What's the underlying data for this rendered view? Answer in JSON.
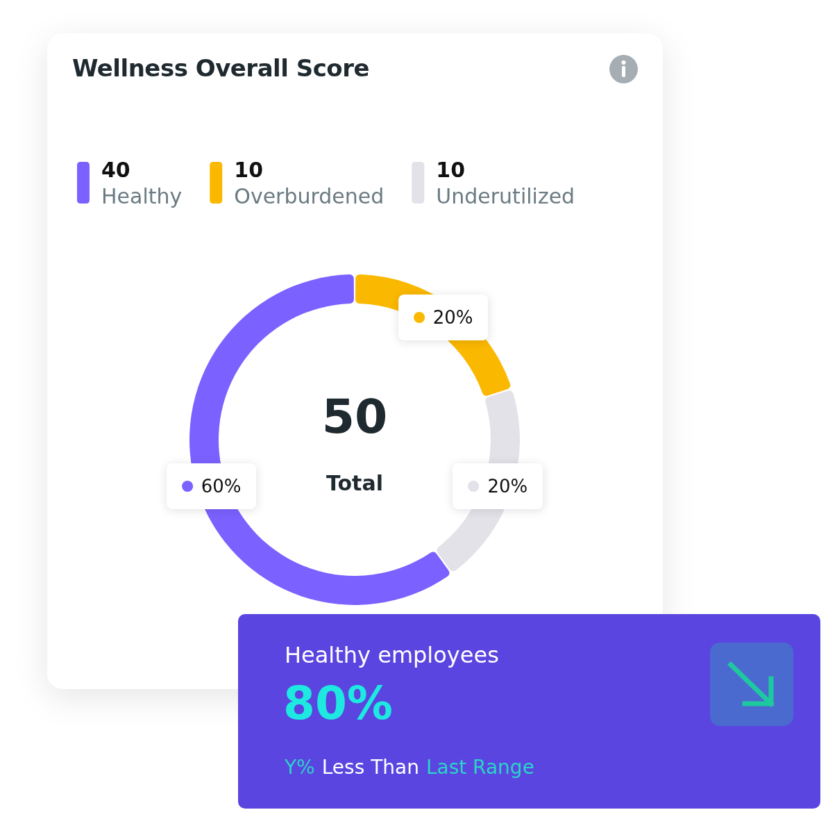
{
  "chart_data": {
    "type": "donut",
    "title": "Wellness Overall Score",
    "categories": [
      "Healthy",
      "Overburdened",
      "Underutilized"
    ],
    "values": [
      60,
      20,
      20
    ],
    "value_labels": [
      "60%",
      "20%",
      "20%"
    ],
    "colors": [
      "#7b61ff",
      "#fbb800",
      "#e2e2e8"
    ],
    "data_labels": true,
    "legend": "top",
    "annotations": [
      "40",
      "10",
      "10",
      "50",
      "Total",
      "Healthy employees",
      "80%",
      "Y%",
      "Less Than",
      "Last Range"
    ]
  }
}
